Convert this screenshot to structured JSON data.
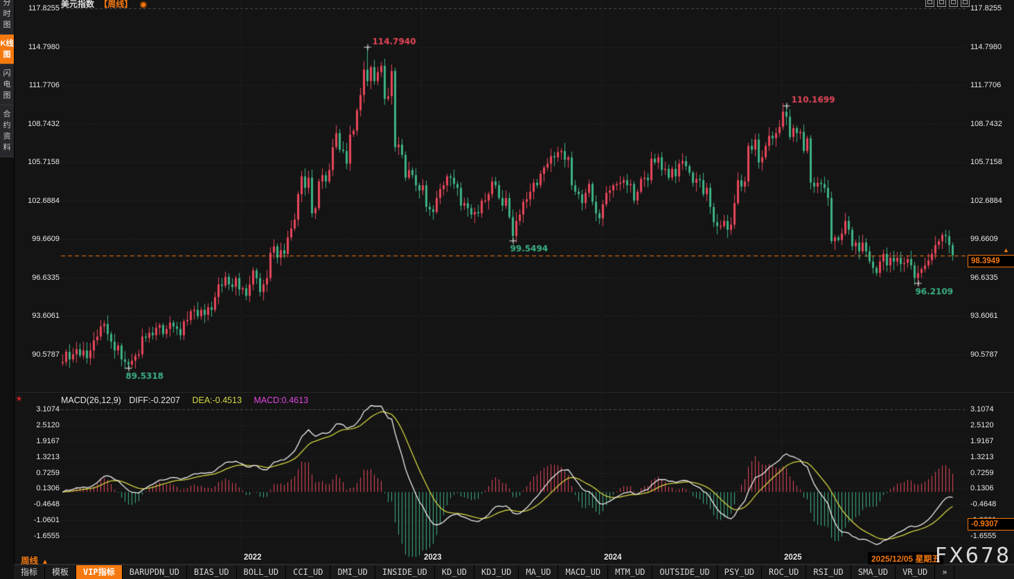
{
  "window": {
    "title_main": "美元指数",
    "title_mode": "【周线】"
  },
  "sidebar": {
    "items": [
      {
        "label": "分时图",
        "active": false
      },
      {
        "label": "K线图",
        "active": true
      },
      {
        "label": "闪电图",
        "active": false
      },
      {
        "label": "合约资料",
        "active": false
      }
    ]
  },
  "colors": {
    "up": "#e8475a",
    "down": "#3db385",
    "accent": "#f5790f",
    "grid": "#3a3a3a",
    "grid_top": "#4f4f4f",
    "axis_text": "#e8e8e8",
    "diff_line": "#f2f2f2",
    "dea_line": "#d6d642",
    "macd_value": "#e045e0",
    "marker_high": "#e8475a",
    "marker_low": "#3db385",
    "cross": "#eeeeee"
  },
  "chart_data": {
    "type": "candlestick",
    "price_panel": {
      "y_ticks": [
        117.8255,
        114.798,
        111.7706,
        108.7432,
        105.7158,
        102.6884,
        99.6609,
        96.6335,
        93.6061,
        90.5787
      ],
      "first_open": 89.9,
      "closes": [
        90.0,
        90.8,
        90.2,
        90.6,
        91.0,
        90.5,
        90.9,
        90.3,
        90.9,
        91.7,
        92.0,
        92.8,
        93.0,
        92.2,
        91.6,
        90.9,
        91.3,
        90.2,
        90.0,
        89.8,
        90.1,
        90.5,
        90.6,
        92.0,
        91.9,
        92.3,
        92.1,
        92.7,
        92.9,
        92.2,
        92.6,
        93.1,
        92.8,
        92.6,
        92.1,
        93.2,
        93.3,
        94.0,
        94.1,
        93.6,
        94.1,
        93.7,
        94.3,
        94.1,
        95.1,
        96.1,
        96.0,
        96.7,
        96.1,
        95.9,
        96.6,
        95.7,
        95.8,
        95.2,
        96.1,
        97.2,
        96.6,
        95.5,
        96.1,
        96.6,
        98.6,
        99.1,
        98.2,
        98.8,
        98.5,
        99.8,
        100.5,
        101.2,
        103.2,
        104.6,
        103.7,
        104.5,
        101.7,
        102.1,
        104.2,
        104.7,
        104.2,
        105.1,
        106.9,
        108.0,
        106.7,
        106.6,
        105.6,
        107.9,
        108.2,
        109.8,
        111.0,
        113.0,
        112.1,
        113.2,
        112.1,
        112.8,
        113.3,
        110.7,
        110.9,
        112.9,
        106.9,
        107.1,
        106.3,
        104.5,
        105.1,
        104.7,
        103.9,
        103.5,
        103.9,
        102.2,
        102.0,
        101.8,
        102.9,
        103.6,
        103.9,
        104.6,
        104.5,
        104.0,
        103.7,
        102.3,
        102.5,
        102.1,
        101.6,
        101.8,
        101.7,
        102.7,
        102.7,
        103.2,
        104.2,
        103.9,
        102.9,
        102.3,
        102.9,
        101.4,
        99.9,
        101.1,
        101.6,
        102.6,
        102.8,
        103.4,
        104.1,
        103.9,
        104.8,
        105.3,
        105.6,
        106.2,
        106.1,
        106.5,
        106.6,
        105.9,
        106.1,
        103.9,
        103.4,
        103.2,
        102.5,
        103.3,
        104.0,
        102.6,
        101.7,
        101.3,
        102.4,
        103.3,
        103.5,
        103.9,
        104.0,
        104.1,
        104.3,
        103.9,
        104.0,
        102.7,
        103.4,
        104.4,
        104.5,
        104.3,
        106.0,
        105.7,
        106.1,
        105.1,
        105.2,
        104.5,
        105.2,
        104.6,
        105.6,
        105.8,
        105.4,
        104.9,
        104.1,
        104.4,
        104.3,
        103.2,
        103.7,
        102.2,
        101.0,
        100.7,
        100.7,
        101.1,
        100.4,
        100.8,
        102.5,
        104.3,
        103.8,
        104.2,
        107.0,
        106.7,
        107.5,
        105.7,
        106.1,
        107.0,
        107.8,
        107.6,
        108.0,
        108.5,
        109.7,
        109.3,
        107.7,
        108.4,
        108.0,
        108.1,
        106.6,
        107.6,
        104.1,
        103.8,
        104.1,
        104.0,
        103.7,
        102.9,
        99.5,
        99.8,
        99.6,
        100.1,
        101.1,
        100.4,
        99.1,
        99.4,
        98.7,
        99.4,
        98.7,
        97.9,
        97.4,
        97.0,
        97.9,
        98.5,
        97.6,
        98.2,
        97.9,
        98.2,
        97.7,
        97.8,
        98.1,
        97.6,
        96.6,
        97.0,
        97.3,
        97.6,
        98.0,
        98.5,
        99.2,
        99.5,
        100.0,
        99.9,
        99.2,
        98.39
      ],
      "year_boundaries": [
        52,
        104,
        156,
        208
      ],
      "year_labels": [
        "2022",
        "2023",
        "2024",
        "2025"
      ],
      "markers": [
        {
          "index": 19,
          "price": 89.5318,
          "kind": "low",
          "label": "89.5318"
        },
        {
          "index": 88,
          "price": 114.794,
          "kind": "high",
          "label": "114.7940"
        },
        {
          "index": 130,
          "price": 99.5494,
          "kind": "low",
          "label": "99.5494"
        },
        {
          "index": 209,
          "price": 110.1699,
          "kind": "high",
          "label": "110.1699"
        },
        {
          "index": 247,
          "price": 96.2109,
          "kind": "low",
          "label": "96.2109"
        }
      ],
      "last_price_value": 98.3949,
      "last_price_label": "98.3949"
    },
    "macd_panel": {
      "y_ticks": [
        3.1074,
        2.512,
        1.9167,
        1.3213,
        0.7259,
        0.1306,
        -0.4648,
        -1.0601,
        -1.6555
      ],
      "header": {
        "name": "MACD(26,12,9)",
        "diff": "DIFF:-0.2207",
        "dea": "DEA:-0.4513",
        "macd": "MACD:0.4613"
      },
      "params": {
        "fast": 12,
        "slow": 26,
        "signal": 9
      },
      "right_value": "-0.9307"
    }
  },
  "footer": {
    "period_label": "周线",
    "period_arrow": "▲",
    "date_label": "2025/12/05 星期五",
    "watermark": "FX678",
    "tabs": [
      "指标",
      "模板",
      "VIP指标",
      "BARUPDN_UD",
      "BIAS_UD",
      "BOLL_UD",
      "CCI_UD",
      "DMI_UD",
      "INSIDE_UD",
      "KD_UD",
      "KDJ_UD",
      "MA_UD",
      "MACD_UD",
      "MTM_UD",
      "OUTSIDE_UD",
      "PSY_UD",
      "ROC_UD",
      "RSI_UD",
      "SMA_UD",
      "VR_UD",
      "»"
    ],
    "active_tab_index": 2
  }
}
